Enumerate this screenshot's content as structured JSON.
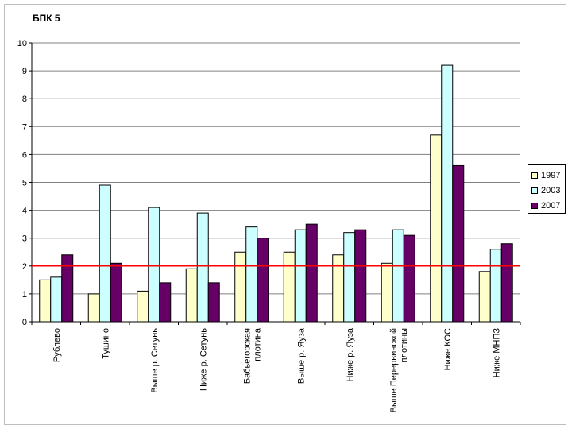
{
  "chart_data": {
    "type": "bar",
    "title": "БПК 5",
    "categories": [
      "Рублево",
      "Тушино",
      "Выше р. Сетунь",
      "Ниже р. Сетунь",
      "Бабьегорская плотина",
      "Выше р. Яуза",
      "Ниже р. Яуза",
      "Выше Перервинской плотины",
      "Ниже КОС",
      "Ниже МНПЗ"
    ],
    "series": [
      {
        "name": "1997",
        "color": "#ffffcc",
        "values": [
          1.5,
          1.0,
          1.1,
          1.9,
          2.5,
          2.5,
          2.4,
          2.1,
          6.7,
          1.8
        ]
      },
      {
        "name": "2003",
        "color": "#ccffff",
        "values": [
          1.6,
          4.9,
          4.1,
          3.9,
          3.4,
          3.3,
          3.2,
          3.3,
          9.2,
          2.6
        ]
      },
      {
        "name": "2007",
        "color": "#660066",
        "values": [
          2.4,
          2.1,
          1.4,
          1.4,
          3.0,
          3.5,
          3.3,
          3.1,
          5.6,
          2.8
        ]
      }
    ],
    "ylim": [
      0,
      10
    ],
    "yticks": [
      0,
      1,
      2,
      3,
      4,
      5,
      6,
      7,
      8,
      9,
      10
    ],
    "reference_line": {
      "value": 2,
      "color": "#ff0000"
    },
    "grid": true,
    "legend_position": "right"
  }
}
